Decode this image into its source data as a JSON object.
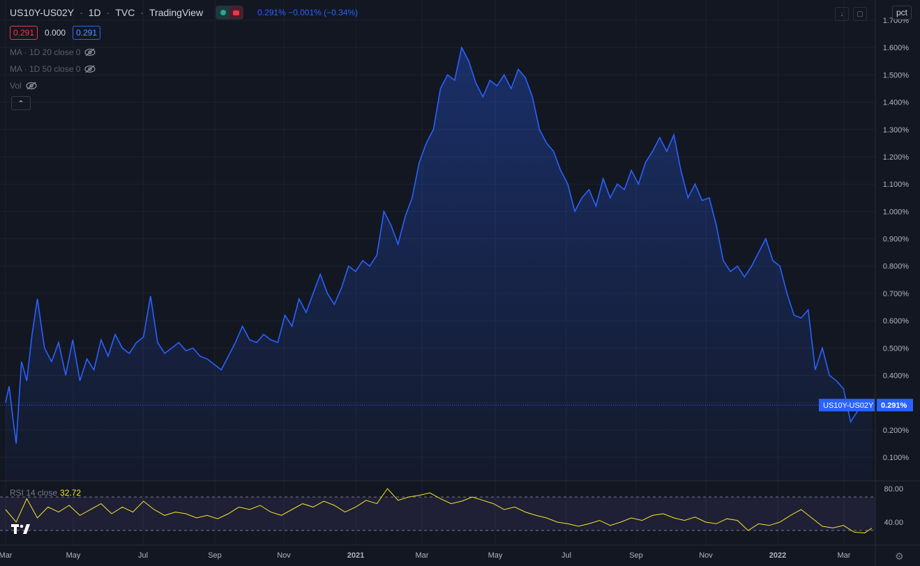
{
  "header": {
    "symbol": "US10Y-US02Y",
    "interval": "1D",
    "exchange": "TVC",
    "source": "TradingView",
    "change_text": "0.291%  −0.001% (−0.34%)",
    "box_red": "0.291",
    "box_plain": "0.000",
    "box_blue": "0.291",
    "indicators": [
      "MA · 1D 20 close 0",
      "MA · 1D 50 close 0",
      "Vol"
    ],
    "collapse_glyph": "⌃",
    "scale_btn": "pct"
  },
  "price_tag": {
    "symbol": "US10Y-US02Y",
    "value": "0.291%"
  },
  "rsi": {
    "label": "RSI 14 close",
    "value": "32.72"
  },
  "colors": {
    "bg": "#131722",
    "line": "#2962ff",
    "rsi": "#f5e829",
    "grid": "#1e222d"
  },
  "icons": [
    "down-arrow-icon",
    "maximize-icon",
    "eye-off-icon",
    "tradingview-logo-icon",
    "gear-icon"
  ],
  "chart_data": [
    {
      "type": "area",
      "x_axis_labels": [
        "Mar",
        "May",
        "Jul",
        "Sep",
        "Nov",
        "2021",
        "Mar",
        "May",
        "Jul",
        "Sep",
        "Nov",
        "2022",
        "Mar"
      ],
      "y_tick_labels": [
        "1.700%",
        "1.600%",
        "1.500%",
        "1.400%",
        "1.300%",
        "1.200%",
        "1.100%",
        "1.000%",
        "0.900%",
        "0.800%",
        "0.700%",
        "0.600%",
        "0.500%",
        "0.400%",
        "0.300%",
        "0.200%",
        "0.100%"
      ],
      "ylim": [
        0.0,
        1.7
      ],
      "xlim": [
        0,
        24.6
      ],
      "last_value": 0.291,
      "series": [
        {
          "x": [
            0,
            0.1,
            0.2,
            0.3,
            0.45,
            0.6,
            0.75,
            0.9,
            1.1,
            1.3,
            1.5,
            1.7,
            1.9,
            2.1,
            2.3,
            2.5,
            2.7,
            2.9,
            3.1,
            3.3,
            3.5,
            3.7,
            3.9,
            4.1,
            4.3,
            4.5,
            4.7,
            4.9,
            5.1,
            5.3,
            5.5,
            5.7,
            5.9,
            6.1,
            6.3,
            6.5,
            6.7,
            6.9,
            7.1,
            7.3,
            7.5,
            7.7,
            7.9,
            8.1,
            8.3,
            8.5,
            8.7,
            8.9,
            9.1,
            9.3,
            9.5,
            9.7,
            9.9,
            10.1,
            10.3,
            10.5,
            10.7,
            10.9,
            11.1,
            11.3,
            11.5,
            11.7,
            11.9,
            12.1,
            12.3,
            12.5,
            12.7,
            12.9,
            13.1,
            13.3,
            13.5,
            13.7,
            13.9,
            14.1,
            14.3,
            14.5,
            14.7,
            14.9,
            15.1,
            15.3,
            15.5,
            15.7,
            15.9,
            16.1,
            16.3,
            16.5,
            16.7,
            16.9,
            17.1,
            17.3,
            17.5,
            17.7,
            17.9,
            18.1,
            18.3,
            18.5,
            18.7,
            18.9,
            19.1,
            19.3,
            19.5,
            19.7,
            19.9,
            20.1,
            20.3,
            20.5,
            20.7,
            20.9,
            21.1,
            21.3,
            21.5,
            21.7,
            21.9,
            22.1,
            22.3,
            22.5,
            22.7,
            22.9,
            23.1,
            23.3,
            23.5,
            23.7,
            23.9,
            24.1,
            24.3,
            24.5
          ],
          "y": [
            0.3,
            0.36,
            0.25,
            0.15,
            0.45,
            0.38,
            0.55,
            0.68,
            0.5,
            0.45,
            0.52,
            0.4,
            0.53,
            0.38,
            0.46,
            0.42,
            0.53,
            0.47,
            0.55,
            0.5,
            0.48,
            0.52,
            0.54,
            0.69,
            0.52,
            0.48,
            0.5,
            0.52,
            0.49,
            0.5,
            0.47,
            0.46,
            0.44,
            0.42,
            0.47,
            0.52,
            0.58,
            0.53,
            0.52,
            0.55,
            0.53,
            0.52,
            0.62,
            0.58,
            0.68,
            0.63,
            0.7,
            0.77,
            0.7,
            0.66,
            0.72,
            0.8,
            0.78,
            0.82,
            0.8,
            0.84,
            1.0,
            0.95,
            0.88,
            0.98,
            1.05,
            1.18,
            1.25,
            1.3,
            1.45,
            1.5,
            1.48,
            1.6,
            1.55,
            1.47,
            1.42,
            1.48,
            1.46,
            1.5,
            1.45,
            1.52,
            1.49,
            1.42,
            1.3,
            1.25,
            1.22,
            1.15,
            1.1,
            1.0,
            1.05,
            1.08,
            1.02,
            1.12,
            1.05,
            1.1,
            1.08,
            1.15,
            1.1,
            1.18,
            1.22,
            1.27,
            1.22,
            1.28,
            1.15,
            1.05,
            1.1,
            1.04,
            1.05,
            0.95,
            0.82,
            0.78,
            0.8,
            0.76,
            0.8,
            0.85,
            0.9,
            0.82,
            0.8,
            0.7,
            0.62,
            0.61,
            0.64,
            0.42,
            0.5,
            0.4,
            0.38,
            0.35,
            0.23,
            0.27,
            0.29,
            0.291
          ]
        }
      ]
    },
    {
      "type": "line",
      "name": "RSI 14 close",
      "y_tick_labels": [
        "80.00",
        "40.00"
      ],
      "ylim": [
        20,
        85
      ],
      "bands": [
        70,
        30
      ],
      "last_value": 32.72,
      "series": [
        {
          "x": [
            0,
            0.3,
            0.6,
            0.9,
            1.2,
            1.5,
            1.8,
            2.1,
            2.4,
            2.7,
            3.0,
            3.3,
            3.6,
            3.9,
            4.2,
            4.5,
            4.8,
            5.1,
            5.4,
            5.7,
            6.0,
            6.3,
            6.6,
            6.9,
            7.2,
            7.5,
            7.8,
            8.1,
            8.4,
            8.7,
            9.0,
            9.3,
            9.6,
            9.9,
            10.2,
            10.5,
            10.8,
            11.1,
            11.4,
            11.7,
            12.0,
            12.3,
            12.6,
            12.9,
            13.2,
            13.5,
            13.8,
            14.1,
            14.4,
            14.7,
            15.0,
            15.3,
            15.6,
            15.9,
            16.2,
            16.5,
            16.8,
            17.1,
            17.4,
            17.7,
            18.0,
            18.3,
            18.6,
            18.9,
            19.2,
            19.5,
            19.8,
            20.1,
            20.4,
            20.7,
            21.0,
            21.3,
            21.6,
            21.9,
            22.2,
            22.5,
            22.8,
            23.1,
            23.4,
            23.7,
            24.0,
            24.3,
            24.5
          ],
          "y": [
            55,
            40,
            68,
            45,
            58,
            52,
            60,
            48,
            55,
            62,
            50,
            58,
            52,
            65,
            55,
            48,
            52,
            50,
            45,
            48,
            44,
            50,
            58,
            55,
            60,
            52,
            48,
            55,
            62,
            58,
            65,
            60,
            52,
            58,
            66,
            62,
            80,
            66,
            70,
            72,
            75,
            68,
            62,
            65,
            70,
            66,
            62,
            55,
            58,
            52,
            48,
            45,
            40,
            38,
            35,
            38,
            42,
            36,
            40,
            45,
            42,
            48,
            50,
            45,
            42,
            46,
            40,
            38,
            44,
            42,
            30,
            38,
            36,
            40,
            48,
            55,
            45,
            35,
            33,
            36,
            28,
            27,
            32.72
          ]
        }
      ]
    }
  ]
}
